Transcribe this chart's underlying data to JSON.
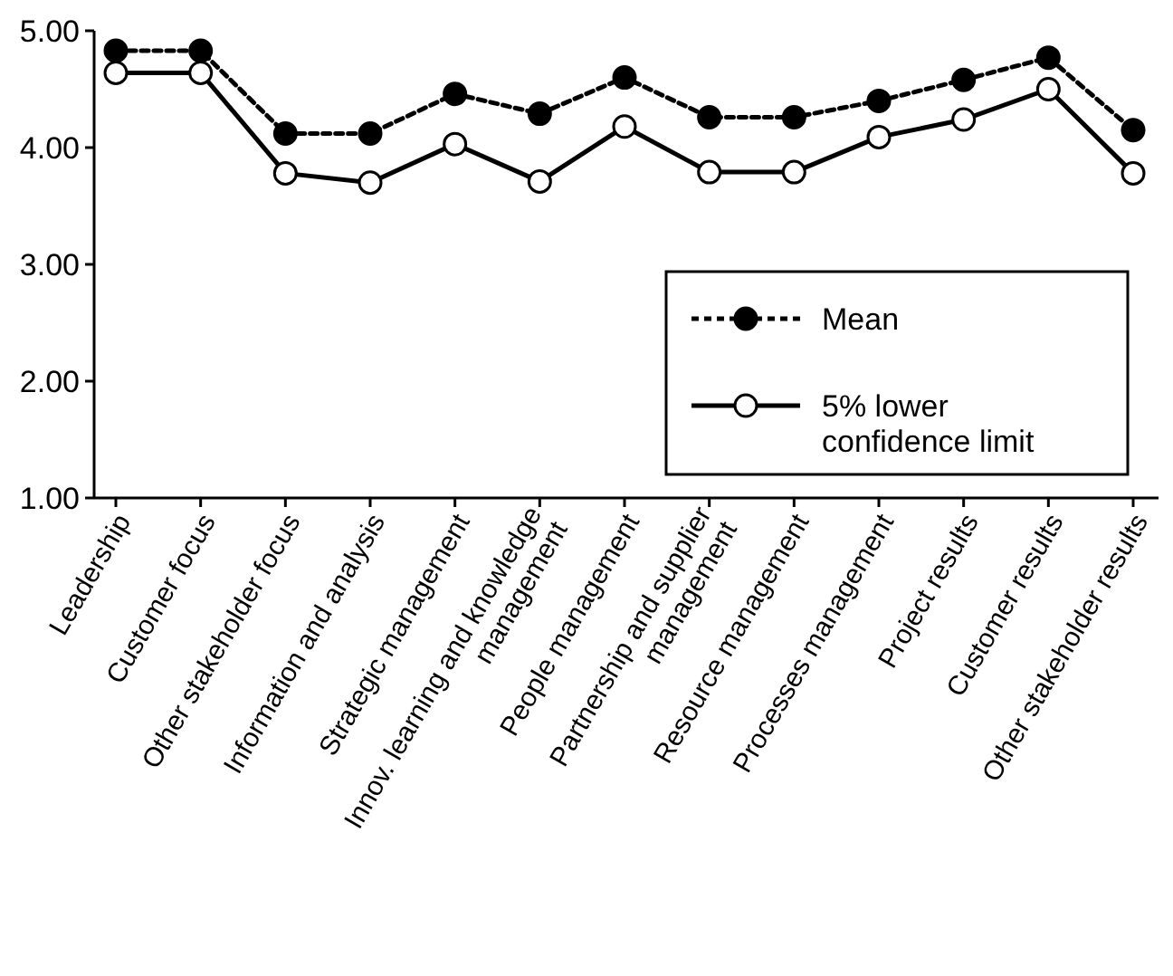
{
  "chart_data": {
    "type": "line",
    "categories": [
      "Leadership",
      "Customer focus",
      "Other stakeholder focus",
      "Information and analysis",
      "Strategic management",
      "Innov. learning and knowledge management",
      "People management",
      "Partnership and supplier management",
      "Resource management",
      "Processes management",
      "Project results",
      "Customer results",
      "Other stakeholder results"
    ],
    "series": [
      {
        "name": "Mean",
        "color": "#000000",
        "line_style": "dashed",
        "values": [
          4.83,
          4.83,
          4.12,
          4.12,
          4.46,
          4.29,
          4.6,
          4.26,
          4.26,
          4.4,
          4.58,
          4.77,
          4.15
        ]
      },
      {
        "name": "5% lower confidence limit",
        "color": "#000000",
        "line_style": "solid",
        "values": [
          4.64,
          4.64,
          3.78,
          3.7,
          4.03,
          3.71,
          4.18,
          3.79,
          3.79,
          4.09,
          4.24,
          4.5,
          3.78
        ]
      }
    ],
    "ylim": [
      1,
      5
    ],
    "yticks": [
      {
        "value": 1,
        "label": "1.00"
      },
      {
        "value": 2,
        "label": "2.00"
      },
      {
        "value": 3,
        "label": "3.00"
      },
      {
        "value": 4,
        "label": "4.00"
      },
      {
        "value": 5,
        "label": "5.00"
      }
    ],
    "marker": "circle",
    "legend": "right",
    "grid": false
  }
}
